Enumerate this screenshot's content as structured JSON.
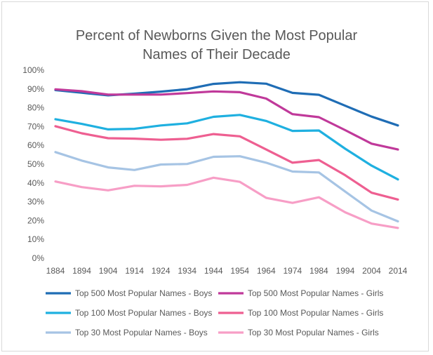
{
  "chart_data": {
    "type": "line",
    "title_line1": "Percent of Newborns Given the Most Popular",
    "title_line2": "Names of Their Decade",
    "x": [
      "1884",
      "1894",
      "1904",
      "1914",
      "1924",
      "1934",
      "1944",
      "1954",
      "1964",
      "1974",
      "1984",
      "1994",
      "2004",
      "2014"
    ],
    "ylim": [
      0,
      100
    ],
    "yticks": [
      "0%",
      "10%",
      "20%",
      "30%",
      "40%",
      "50%",
      "60%",
      "70%",
      "80%",
      "90%",
      "100%"
    ],
    "grid": false,
    "legend_position": "bottom",
    "series": [
      {
        "name": "Top 500 Most Popular Names - Boys",
        "color": "#1f6db5",
        "values": [
          89.4,
          88.0,
          86.6,
          87.5,
          88.6,
          89.9,
          92.7,
          93.6,
          92.8,
          87.9,
          86.9,
          81.1,
          75.3,
          70.6
        ]
      },
      {
        "name": "Top 500 Most Popular Names - Girls",
        "color": "#c0399a",
        "values": [
          89.8,
          88.8,
          87.0,
          87.0,
          87.0,
          87.8,
          88.7,
          88.3,
          84.9,
          76.6,
          75.0,
          68.1,
          60.9,
          57.8
        ]
      },
      {
        "name": "Top 100 Most Popular Names - Boys",
        "color": "#1fb0e0",
        "values": [
          73.9,
          71.4,
          68.5,
          68.8,
          70.6,
          71.7,
          75.2,
          76.2,
          73.0,
          67.7,
          67.9,
          58.2,
          49.2,
          41.9
        ]
      },
      {
        "name": "Top 100 Most Popular Names - Girls",
        "color": "#ee5f91",
        "values": [
          70.2,
          66.4,
          63.8,
          63.6,
          63.0,
          63.5,
          66.0,
          64.8,
          57.8,
          50.8,
          52.2,
          44.1,
          34.8,
          31.2
        ]
      },
      {
        "name": "Top 30 Most Popular Names - Boys",
        "color": "#a6c4e4",
        "values": [
          56.4,
          51.9,
          48.3,
          46.9,
          49.8,
          50.1,
          53.9,
          54.2,
          50.8,
          46.1,
          45.6,
          35.4,
          25.3,
          19.6
        ]
      },
      {
        "name": "Top 30 Most Popular Names - Girls",
        "color": "#f79ec6",
        "values": [
          40.8,
          37.8,
          36.1,
          38.5,
          38.2,
          39.0,
          42.8,
          40.6,
          32.1,
          29.4,
          32.4,
          24.4,
          18.4,
          16.1
        ]
      }
    ]
  }
}
